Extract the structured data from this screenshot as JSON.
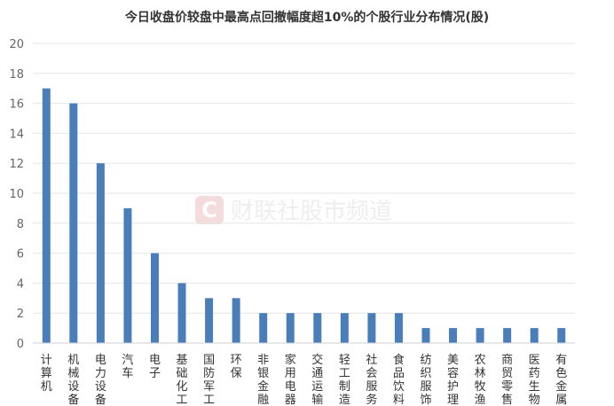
{
  "watermark": {
    "logo_letter": "C",
    "text": "财联社股市频道"
  },
  "chart_data": {
    "type": "bar",
    "title": "今日收盘价较盘中最高点回撤幅度超10%的个股行业分布情况(股)",
    "xlabel": "",
    "ylabel": "",
    "ylim": [
      0,
      20
    ],
    "y_ticks": [
      0,
      2,
      4,
      6,
      8,
      10,
      12,
      14,
      16,
      18,
      20
    ],
    "grid": true,
    "bar_color": "#4a7ebb",
    "categories": [
      "计算机",
      "机械设备",
      "电力设备",
      "汽车",
      "电子",
      "基础化工",
      "国防军工",
      "环保",
      "非银金融",
      "家用电器",
      "交通运输",
      "轻工制造",
      "社会服务",
      "食品饮料",
      "纺织服饰",
      "美容护理",
      "农林牧渔",
      "商贸零售",
      "医药生物",
      "有色金属"
    ],
    "values": [
      17,
      16,
      12,
      9,
      6,
      4,
      3,
      3,
      2,
      2,
      2,
      2,
      2,
      2,
      1,
      1,
      1,
      1,
      1,
      1
    ]
  }
}
